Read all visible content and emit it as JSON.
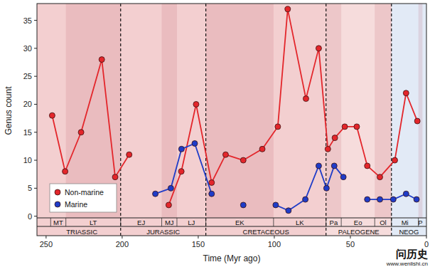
{
  "chart_data": {
    "type": "line",
    "x_label": "Time (Myr ago)",
    "y_label": "Genus count",
    "xlim": [
      256,
      0
    ],
    "xticks": [
      250,
      200,
      150,
      100,
      50,
      0
    ],
    "ylim": [
      -0.3,
      38
    ],
    "yticks": [
      0,
      5,
      10,
      15,
      20,
      25,
      30,
      35
    ],
    "legend": "lower left",
    "marker": "circle",
    "series": [
      {
        "name": "Non-marine",
        "color": "#e3262b",
        "x": [
          246,
          237.5,
          227,
          213.4,
          204.6,
          195.4,
          182,
          169.4,
          161.1,
          151.4,
          141.2,
          132,
          120.4,
          107.9,
          97.7,
          91.2,
          79.2,
          70.8,
          64.8,
          60.2,
          53.7,
          45.8,
          38.9,
          30.6,
          20.8,
          13.4,
          6
        ],
        "values": [
          18,
          8,
          15,
          28,
          7,
          11,
          null,
          2,
          8,
          20,
          6,
          11,
          10,
          12,
          16,
          37,
          21,
          30,
          12,
          14,
          16,
          16,
          9,
          7,
          10,
          22,
          17
        ]
      },
      {
        "name": "Marine",
        "color": "#1f3cc8",
        "x": [
          178.2,
          168,
          161,
          152.3,
          141.2,
          130,
          120.4,
          110,
          99.1,
          90.7,
          79.6,
          70.8,
          65.7,
          60.6,
          54.6,
          47,
          38.9,
          30.6,
          21.8,
          13.4,
          6.5
        ],
        "values": [
          4,
          5,
          12,
          13,
          4,
          null,
          2,
          null,
          2,
          1,
          3,
          9,
          5,
          9,
          7,
          null,
          3,
          3,
          3,
          4,
          3
        ]
      }
    ],
    "periods": [
      {
        "label": "TRIASSIC",
        "start": 252,
        "end": 201,
        "color": "#f3cfd0"
      },
      {
        "label": "JURASSIC",
        "start": 201,
        "end": 145,
        "color": "#f3cfd0"
      },
      {
        "label": "CRETACEOUS",
        "start": 145,
        "end": 66,
        "color": "#f3cfd0"
      },
      {
        "label": "PALEOGENE",
        "start": 66,
        "end": 23,
        "color": "#f6dcdc"
      },
      {
        "label": "NEOG",
        "start": 23,
        "end": 0,
        "color": "#e2eaf6"
      }
    ],
    "epochs": [
      {
        "label": "MT",
        "start": 247,
        "end": 237
      },
      {
        "label": "LT",
        "start": 237,
        "end": 201
      },
      {
        "label": "EJ",
        "start": 201,
        "end": 174
      },
      {
        "label": "MJ",
        "start": 174,
        "end": 164
      },
      {
        "label": "LJ",
        "start": 164,
        "end": 145
      },
      {
        "label": "EK",
        "start": 145,
        "end": 100.5
      },
      {
        "label": "LK",
        "start": 100.5,
        "end": 66
      },
      {
        "label": "Pa",
        "start": 66,
        "end": 56
      },
      {
        "label": "Eo",
        "start": 56,
        "end": 34
      },
      {
        "label": "Ol",
        "start": 34,
        "end": 23
      },
      {
        "label": "Mi",
        "start": 23,
        "end": 5.3
      },
      {
        "label": "P",
        "start": 5.3,
        "end": 2.6
      }
    ],
    "annotations": [
      "问历史",
      "www.wenlishi.cn"
    ]
  }
}
